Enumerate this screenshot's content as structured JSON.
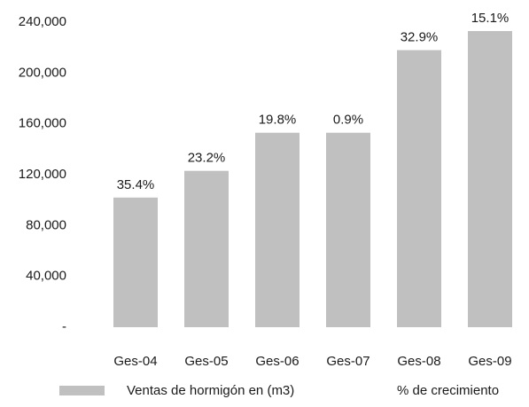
{
  "chart_data": {
    "type": "bar",
    "categories": [
      "Ges-04",
      "Ges-05",
      "Ges-06",
      "Ges-07",
      "Ges-08",
      "Ges-09"
    ],
    "series": [
      {
        "name": "Ventas de hormigón en (m3)",
        "color": "#c0c0c0",
        "values": [
          102000,
          123000,
          153000,
          153000,
          218000,
          233000
        ]
      },
      {
        "name": "% de crecimiento",
        "values": [
          35.4,
          23.2,
          19.8,
          0.9,
          32.9,
          15.1
        ],
        "value_labels": [
          "35.4%",
          "23.2%",
          "19.8%",
          "0.9%",
          "32.9%",
          "15.1%"
        ]
      }
    ],
    "ylim": [
      0,
      240000
    ],
    "yticks": [
      {
        "value": 0,
        "label": "-"
      },
      {
        "value": 40000,
        "label": "40,000"
      },
      {
        "value": 80000,
        "label": "80,000"
      },
      {
        "value": 120000,
        "label": "120,000"
      },
      {
        "value": 160000,
        "label": "160,000"
      },
      {
        "value": 200000,
        "label": "200,000"
      },
      {
        "value": 240000,
        "label": "240,000"
      }
    ]
  }
}
